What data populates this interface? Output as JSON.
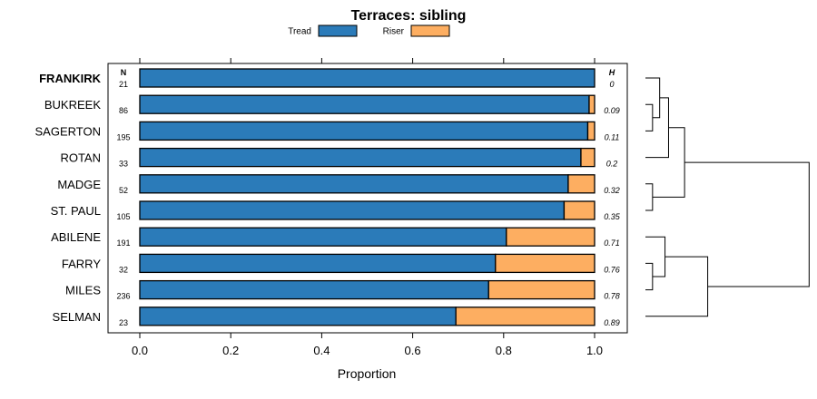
{
  "chart_data": {
    "type": "bar",
    "stacked": true,
    "orientation": "horizontal",
    "title": "Terraces: sibling",
    "xlabel": "Proportion",
    "xlim": [
      -0.07,
      1.07
    ],
    "xticks": [
      0.0,
      0.2,
      0.4,
      0.6,
      0.8,
      1.0
    ],
    "xtick_labels": [
      "0.0",
      "0.2",
      "0.4",
      "0.6",
      "0.8",
      "1.0"
    ],
    "legend": [
      {
        "name": "Tread",
        "color": "#2b7bb9"
      },
      {
        "name": "Riser",
        "color": "#fdae61"
      }
    ],
    "n_header": "N",
    "h_header": "H",
    "categories": [
      "FRANKIRK",
      "BUKREEK",
      "SAGERTON",
      "ROTAN",
      "MADGE",
      "ST. PAUL",
      "ABILENE",
      "FARRY",
      "MILES",
      "SELMAN"
    ],
    "highlighted_category": "FRANKIRK",
    "n": [
      "21",
      "86",
      "195",
      "33",
      "52",
      "105",
      "191",
      "32",
      "236",
      "23"
    ],
    "h": [
      "0",
      "0.09",
      "0.11",
      "0.2",
      "0.32",
      "0.35",
      "0.71",
      "0.76",
      "0.78",
      "0.89"
    ],
    "series": [
      {
        "name": "Tread",
        "values": [
          1.0,
          0.988,
          0.985,
          0.97,
          0.942,
          0.933,
          0.806,
          0.782,
          0.767,
          0.695
        ]
      },
      {
        "name": "Riser",
        "values": [
          0.0,
          0.012,
          0.015,
          0.03,
          0.058,
          0.067,
          0.194,
          0.218,
          0.233,
          0.305
        ]
      }
    ],
    "dendrogram": {
      "merges": [
        {
          "a": 1,
          "b": 2,
          "height": 0.04
        },
        {
          "a": 4,
          "b": 5,
          "height": 0.04
        },
        {
          "a": 7,
          "b": 8,
          "height": 0.04
        },
        {
          "a": "m0",
          "b": 0,
          "height": 0.08
        },
        {
          "a": 6,
          "b": "m2",
          "height": 0.11
        },
        {
          "a": "m3",
          "b": 3,
          "height": 0.13
        },
        {
          "a": "m5",
          "b": "m1",
          "height": 0.22
        },
        {
          "a": "m4",
          "b": 9,
          "height": 0.35
        },
        {
          "a": "m6",
          "b": "m7",
          "height": 0.92
        }
      ]
    }
  }
}
